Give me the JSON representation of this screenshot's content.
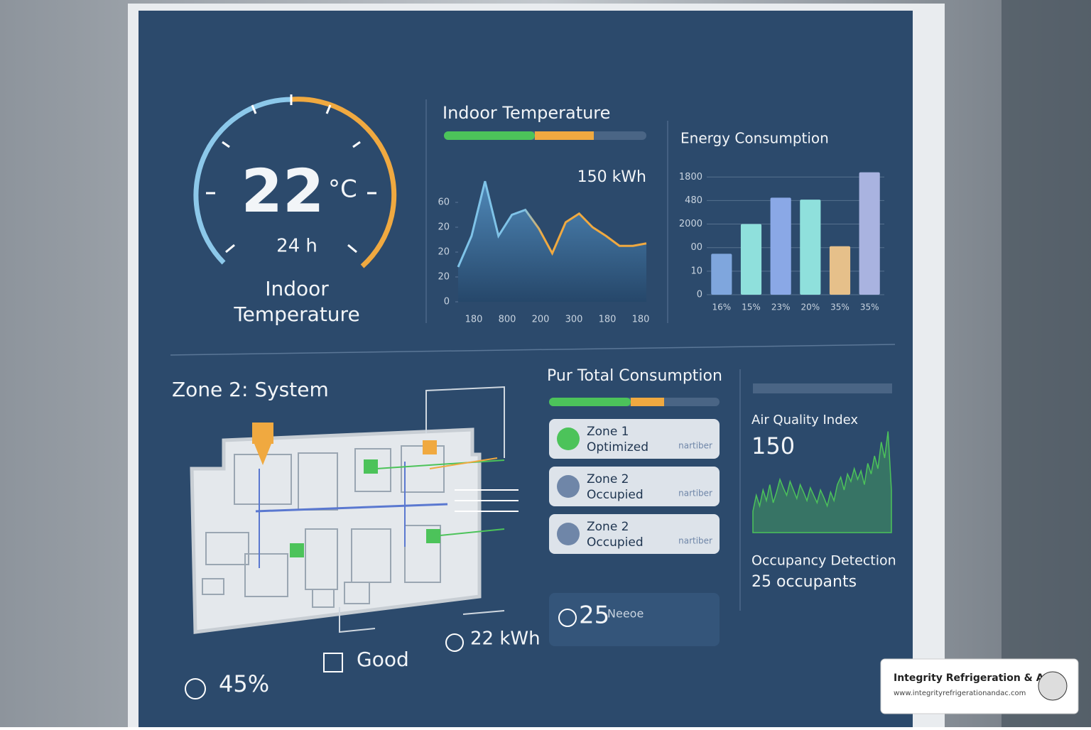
{
  "gauge": {
    "value": "22",
    "unit": "°C",
    "sub": "24 h",
    "label_line1": "Indoor",
    "label_line2": "Temperature"
  },
  "chart_data": [
    {
      "type": "line",
      "title": "Indoor Temperature",
      "annotation": "150 kWh",
      "values": [
        28,
        53,
        97,
        53,
        70,
        74,
        59,
        39,
        64,
        71,
        60,
        53,
        45,
        45,
        47
      ],
      "xtick_labels": [
        "180",
        "800",
        "200",
        "300",
        "180",
        "180"
      ],
      "ylim": [
        0,
        100
      ],
      "yticks": [
        0,
        20,
        {
          "value": 40,
          "label": "20"
        },
        {
          "value": 60,
          "label": "20"
        },
        {
          "value": 80,
          "label": "60"
        }
      ],
      "color": "#7fc3e8",
      "accent_color": "#f0a940"
    },
    {
      "type": "bar",
      "title": "Energy Consumption",
      "categories": [
        "16%",
        "15%",
        "23%",
        "20%",
        "35%",
        "35%"
      ],
      "values": [
        87,
        150,
        206,
        202,
        103,
        260
      ],
      "colors": [
        "#7fa6dd",
        "#8fe0dc",
        "#8aa8e6",
        "#8fe0dc",
        "#e6c08a",
        "#a9b3e0"
      ],
      "ylim": [
        0,
        270
      ],
      "yticks": [
        0,
        {
          "value": 50,
          "label": "10"
        },
        {
          "value": 100,
          "label": "00"
        },
        {
          "value": 150,
          "label": "2000"
        },
        {
          "value": 200,
          "label": "480"
        },
        {
          "value": 250,
          "label": "1800"
        }
      ],
      "grid": true
    },
    {
      "type": "line",
      "title": "Air Quality Index",
      "annotation": "150",
      "values": [
        20,
        35,
        25,
        40,
        30,
        45,
        28,
        38,
        50,
        42,
        35,
        48,
        40,
        32,
        45,
        38,
        30,
        42,
        35,
        28,
        40,
        33,
        25,
        38,
        30,
        45,
        52,
        40,
        55,
        48,
        60,
        50,
        58,
        45,
        65,
        55,
        72,
        60,
        85,
        70,
        95,
        40
      ],
      "ylim": [
        0,
        100
      ],
      "color": "#4cc35a"
    }
  ],
  "zone_panel": {
    "title": "Zone 2: System",
    "stats": [
      "45%",
      "Good",
      "22 kWh"
    ]
  },
  "consumption_panel": {
    "title": "Pur Total Consumption",
    "cards": [
      {
        "name": "Zone 1",
        "status": "Optimized",
        "tag": "nartiber"
      },
      {
        "name": "Zone 2",
        "status": "Occupied",
        "tag": "nartiber"
      },
      {
        "name": "Zone 2",
        "status": "Occupied",
        "tag": "nartiber"
      }
    ],
    "summary": {
      "value": "25",
      "label": "Neeoe"
    }
  },
  "occupancy": {
    "title": "Occupancy Detection",
    "count": "25 occupants"
  },
  "badge": {
    "name": "Integrity Refrigeration & AC",
    "url": "www.integrityrefrigerationandac.com"
  }
}
